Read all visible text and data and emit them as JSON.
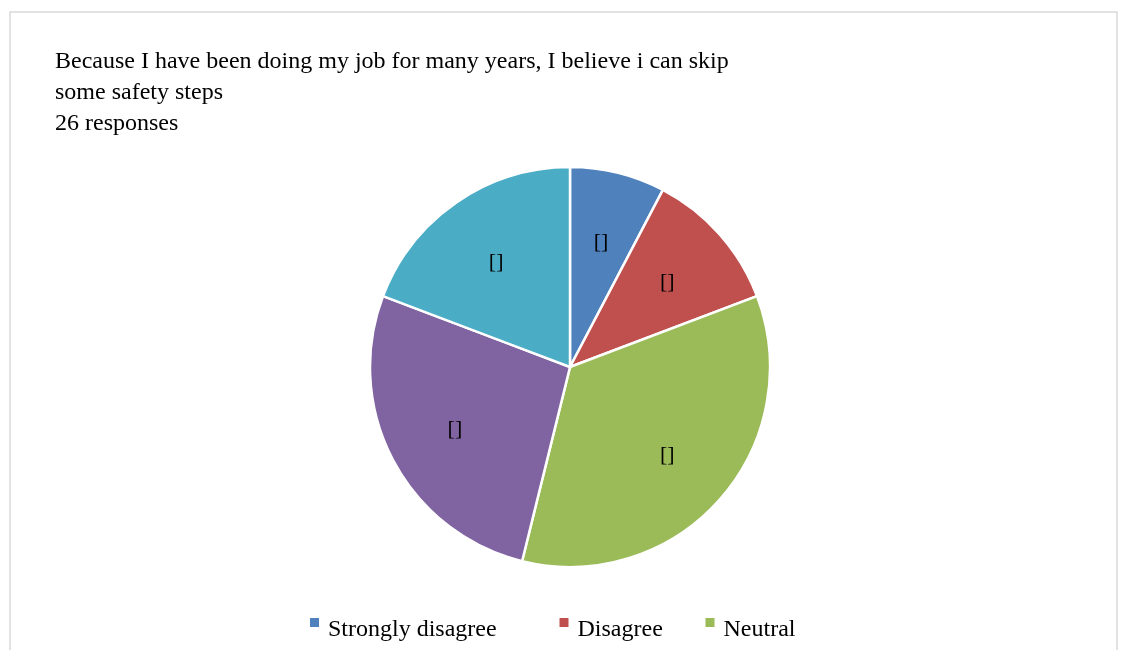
{
  "chart_data": {
    "type": "pie",
    "title": "Because I have been doing my job for many years, I believe i can skip some safety steps",
    "subtitle": "26 responses",
    "categories": [
      "Strongly disagree",
      "Disagree",
      "Neutral",
      null,
      null
    ],
    "values": [
      7.69,
      11.54,
      34.62,
      26.92,
      19.23
    ],
    "colors": [
      "#4f81bd",
      "#c0504d",
      "#9bbb59",
      "#8064a2",
      "#4bacc6"
    ],
    "value_labels": [
      "[]",
      "[]",
      "[]",
      "[]",
      "[]"
    ],
    "legend": "bottom"
  }
}
